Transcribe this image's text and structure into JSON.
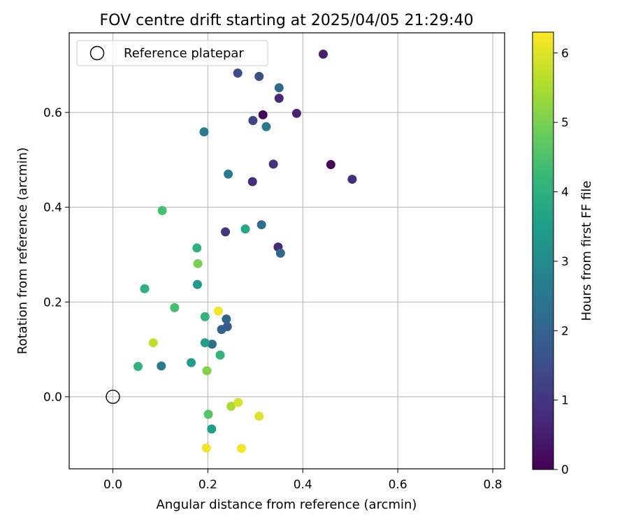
{
  "chart_data": {
    "type": "scatter",
    "title": "FOV centre drift starting at 2025/04/05 21:29:40",
    "xlabel": "Angular distance from reference (arcmin)",
    "ylabel": "Rotation from reference (arcmin)",
    "xlim": [
      -0.092,
      0.825
    ],
    "ylim": [
      -0.152,
      0.768
    ],
    "xticks": [
      0.0,
      0.2,
      0.4,
      0.6,
      0.8
    ],
    "yticks": [
      0.0,
      0.2,
      0.4,
      0.6
    ],
    "xtick_labels": [
      "0.0",
      "0.2",
      "0.4",
      "0.6",
      "0.8"
    ],
    "ytick_labels": [
      "0.0",
      "0.2",
      "0.4",
      "0.6"
    ],
    "grid": true,
    "legend": {
      "label": "Reference platepar",
      "placement": "top-left"
    },
    "reference_point": {
      "x": 0.0,
      "y": 0.0
    },
    "colorbar": {
      "label": "Hours from first FF file",
      "range": [
        0,
        6.3
      ],
      "ticks": [
        0,
        1,
        2,
        3,
        4,
        5,
        6
      ],
      "tick_labels": [
        "0",
        "1",
        "2",
        "3",
        "4",
        "5",
        "6"
      ],
      "colormap": "viridis"
    },
    "colormap_stops": [
      "#440154",
      "#482878",
      "#3e4989",
      "#31688e",
      "#26828e",
      "#1f9e89",
      "#35b779",
      "#6ece58",
      "#b5de2b",
      "#fde725"
    ],
    "points": [
      {
        "x": 0.316,
        "y": 0.595,
        "h": 0.05
      },
      {
        "x": 0.459,
        "y": 0.49,
        "h": 0.1
      },
      {
        "x": 0.443,
        "y": 0.723,
        "h": 0.5
      },
      {
        "x": 0.387,
        "y": 0.598,
        "h": 0.6
      },
      {
        "x": 0.35,
        "y": 0.63,
        "h": 0.7
      },
      {
        "x": 0.504,
        "y": 0.459,
        "h": 0.8
      },
      {
        "x": 0.294,
        "y": 0.454,
        "h": 0.8
      },
      {
        "x": 0.338,
        "y": 0.491,
        "h": 0.9
      },
      {
        "x": 0.348,
        "y": 0.316,
        "h": 0.7
      },
      {
        "x": 0.237,
        "y": 0.348,
        "h": 1.0
      },
      {
        "x": 0.295,
        "y": 0.583,
        "h": 1.3
      },
      {
        "x": 0.263,
        "y": 0.683,
        "h": 1.5
      },
      {
        "x": 0.308,
        "y": 0.676,
        "h": 1.6
      },
      {
        "x": 0.35,
        "y": 0.652,
        "h": 2.1
      },
      {
        "x": 0.323,
        "y": 0.57,
        "h": 2.5
      },
      {
        "x": 0.192,
        "y": 0.559,
        "h": 2.6
      },
      {
        "x": 0.243,
        "y": 0.47,
        "h": 2.6
      },
      {
        "x": 0.313,
        "y": 0.363,
        "h": 2.3
      },
      {
        "x": 0.353,
        "y": 0.303,
        "h": 2.1
      },
      {
        "x": 0.241,
        "y": 0.148,
        "h": 1.8
      },
      {
        "x": 0.239,
        "y": 0.164,
        "h": 2.0
      },
      {
        "x": 0.229,
        "y": 0.142,
        "h": 1.9
      },
      {
        "x": 0.209,
        "y": 0.111,
        "h": 2.2
      },
      {
        "x": 0.102,
        "y": 0.065,
        "h": 2.6
      },
      {
        "x": 0.279,
        "y": 0.354,
        "h": 3.7
      },
      {
        "x": 0.178,
        "y": 0.237,
        "h": 3.4
      },
      {
        "x": 0.194,
        "y": 0.114,
        "h": 3.5
      },
      {
        "x": 0.165,
        "y": 0.072,
        "h": 3.5
      },
      {
        "x": 0.208,
        "y": -0.068,
        "h": 3.5
      },
      {
        "x": 0.177,
        "y": 0.314,
        "h": 4.0
      },
      {
        "x": 0.067,
        "y": 0.228,
        "h": 4.0
      },
      {
        "x": 0.194,
        "y": 0.169,
        "h": 4.1
      },
      {
        "x": 0.226,
        "y": 0.088,
        "h": 4.1
      },
      {
        "x": 0.053,
        "y": 0.064,
        "h": 4.1
      },
      {
        "x": 0.104,
        "y": 0.393,
        "h": 4.4
      },
      {
        "x": 0.13,
        "y": 0.188,
        "h": 4.4
      },
      {
        "x": 0.201,
        "y": -0.037,
        "h": 4.6
      },
      {
        "x": 0.179,
        "y": 0.281,
        "h": 5.0
      },
      {
        "x": 0.198,
        "y": 0.055,
        "h": 5.1
      },
      {
        "x": 0.249,
        "y": -0.02,
        "h": 5.5
      },
      {
        "x": 0.085,
        "y": 0.114,
        "h": 5.7
      },
      {
        "x": 0.264,
        "y": -0.012,
        "h": 5.9
      },
      {
        "x": 0.308,
        "y": -0.041,
        "h": 6.0
      },
      {
        "x": 0.222,
        "y": 0.181,
        "h": 6.2
      },
      {
        "x": 0.197,
        "y": -0.108,
        "h": 6.2
      },
      {
        "x": 0.271,
        "y": -0.109,
        "h": 6.2
      }
    ]
  }
}
